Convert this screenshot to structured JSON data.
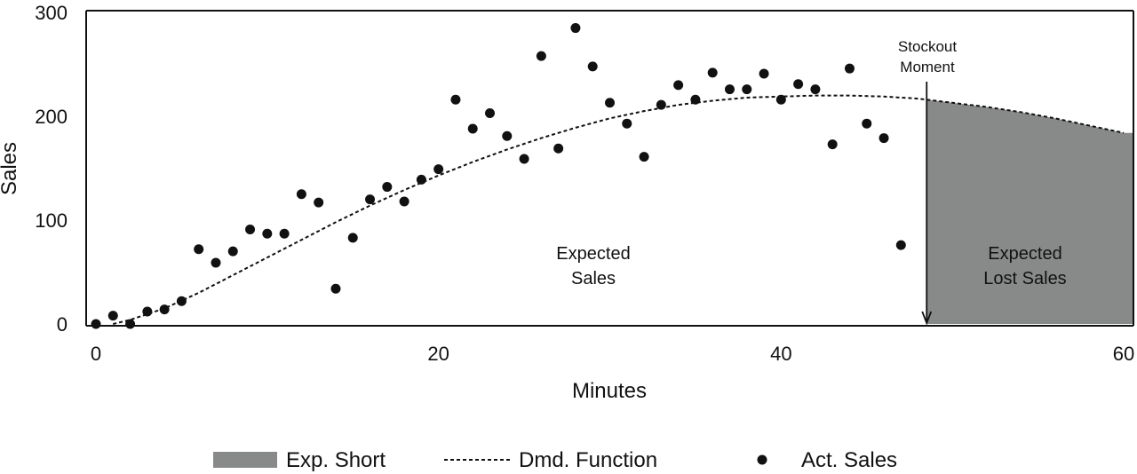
{
  "chart_data": {
    "type": "scatter",
    "title": "",
    "xlabel": "Minutes",
    "ylabel": "Sales",
    "xlim": [
      0,
      60
    ],
    "ylim": [
      0,
      300
    ],
    "xticks": [
      0,
      20,
      40,
      60
    ],
    "yticks": [
      0,
      100,
      200,
      300
    ],
    "grid": false,
    "colors": {
      "shaded": "#888a89",
      "line": "#111111",
      "points": "#111111"
    },
    "stockout": {
      "x": 48.5,
      "label": [
        "Stockout",
        "Moment"
      ]
    },
    "annotations": {
      "expected_sales": [
        "Expected",
        "Sales"
      ],
      "expected_lost_sales": [
        "Expected",
        "Lost Sales"
      ]
    },
    "series": [
      {
        "name": "Act. Sales",
        "type": "scatter",
        "points": [
          [
            0,
            0
          ],
          [
            1,
            8
          ],
          [
            2,
            0
          ],
          [
            3,
            12
          ],
          [
            4,
            14
          ],
          [
            5,
            22
          ],
          [
            6,
            72
          ],
          [
            7,
            59
          ],
          [
            8,
            70
          ],
          [
            9,
            91
          ],
          [
            10,
            87
          ],
          [
            11,
            87
          ],
          [
            12,
            125
          ],
          [
            13,
            117
          ],
          [
            14,
            34
          ],
          [
            15,
            83
          ],
          [
            16,
            120
          ],
          [
            17,
            132
          ],
          [
            18,
            118
          ],
          [
            19,
            139
          ],
          [
            20,
            149
          ],
          [
            21,
            216
          ],
          [
            22,
            188
          ],
          [
            23,
            203
          ],
          [
            24,
            181
          ],
          [
            25,
            159
          ],
          [
            26,
            258
          ],
          [
            27,
            169
          ],
          [
            28,
            285
          ],
          [
            29,
            248
          ],
          [
            30,
            213
          ],
          [
            31,
            193
          ],
          [
            32,
            161
          ],
          [
            33,
            211
          ],
          [
            34,
            230
          ],
          [
            35,
            216
          ],
          [
            36,
            242
          ],
          [
            37,
            226
          ],
          [
            38,
            226
          ],
          [
            39,
            241
          ],
          [
            40,
            216
          ],
          [
            41,
            231
          ],
          [
            42,
            226
          ],
          [
            43,
            173
          ],
          [
            44,
            246
          ],
          [
            45,
            193
          ],
          [
            46,
            179
          ],
          [
            47,
            76
          ]
        ]
      },
      {
        "name": "Dmd. Function",
        "type": "line",
        "x": [
          1,
          2,
          4,
          6,
          8,
          10,
          12,
          14,
          16,
          18,
          20,
          22,
          24,
          26,
          28,
          30,
          32,
          34,
          36,
          38,
          40,
          42,
          44,
          46,
          48,
          50,
          52,
          54,
          56,
          58,
          60
        ],
        "y": [
          0,
          4,
          15,
          30,
          47,
          64,
          81,
          98,
          114,
          129,
          143,
          156,
          168,
          179,
          189,
          198,
          205,
          211,
          215,
          218,
          219,
          220,
          220,
          219,
          217,
          213,
          209,
          204,
          198,
          191,
          184
        ]
      },
      {
        "name": "Exp. Short",
        "type": "area",
        "x_from": 48.5,
        "x_to": 60
      }
    ],
    "legend": {
      "position": "bottom",
      "items": [
        "Exp. Short",
        "Dmd. Function",
        "Act. Sales"
      ]
    }
  }
}
